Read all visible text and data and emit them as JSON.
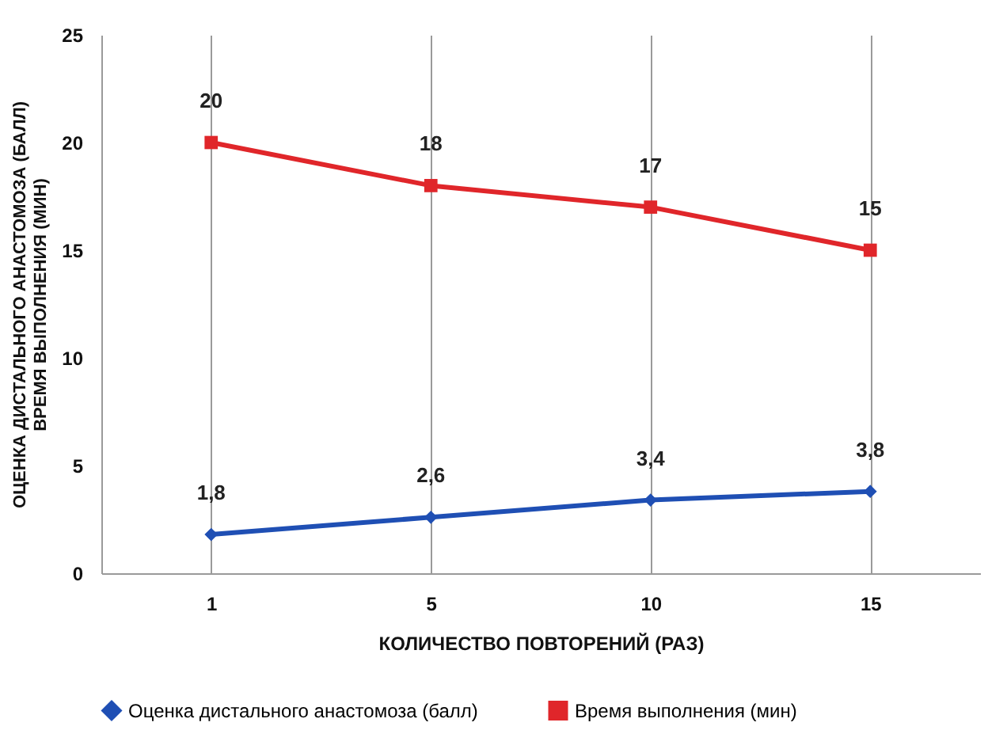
{
  "chart_data": {
    "type": "line",
    "xlabel": "КОЛИЧЕСТВО ПОВТОРЕНИЙ (РАЗ)",
    "ylabel": "ОЦЕНКА ДИСТАЛЬНОГО АНАСТОМОЗА (БАЛЛ)\nВРЕМЯ ВЫПОЛНЕНИЯ (МИН)",
    "categories": [
      "1",
      "5",
      "10",
      "15"
    ],
    "series": [
      {
        "name": "Оценка дистального анастомоза (балл)",
        "color": "#1f4fb4",
        "marker": "diamond",
        "values": [
          1.8,
          2.6,
          3.4,
          3.8
        ],
        "value_labels": [
          "1,8",
          "2,6",
          "3,4",
          "3,8"
        ]
      },
      {
        "name": "Время выполнения (мин)",
        "color": "#e0262a",
        "marker": "square",
        "values": [
          20,
          18,
          17,
          15
        ],
        "value_labels": [
          "20",
          "18",
          "17",
          "15"
        ]
      }
    ],
    "ylim": [
      0,
      25
    ],
    "yticks": [
      0,
      5,
      10,
      15,
      20,
      25
    ],
    "grid": "x",
    "legend": "bottom"
  }
}
